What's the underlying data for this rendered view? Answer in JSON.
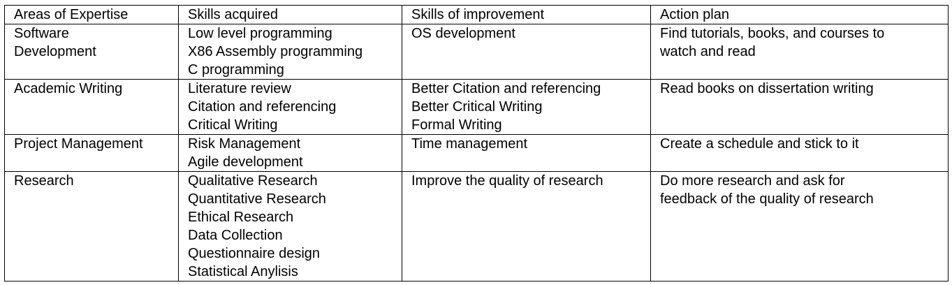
{
  "table": {
    "headers": [
      "Areas of Expertise",
      "Skills acquired",
      "Skills of improvement",
      "Action plan"
    ],
    "rows": [
      {
        "area": [
          "Software",
          "Development"
        ],
        "acquired": [
          "Low level programming",
          "X86 Assembly programming",
          "C programming"
        ],
        "improvement": [
          "OS development"
        ],
        "action": [
          "Find tutorials, books, and courses to",
          "watch and read"
        ]
      },
      {
        "area": [
          "Academic Writing"
        ],
        "acquired": [
          "Literature review",
          "Citation and referencing",
          "Critical Writing"
        ],
        "improvement": [
          "Better Citation and referencing",
          "Better Critical Writing",
          "Formal Writing"
        ],
        "action": [
          "Read books on dissertation writing"
        ]
      },
      {
        "area": [
          "Project Management"
        ],
        "acquired": [
          "Risk Management",
          "Agile development"
        ],
        "improvement": [
          "Time management"
        ],
        "action": [
          "Create a schedule and stick to it"
        ]
      },
      {
        "area": [
          "Research"
        ],
        "acquired": [
          "Qualitative Research",
          "Quantitative Research",
          "Ethical Research",
          "Data Collection",
          "Questionnaire design",
          "Statistical Anylisis"
        ],
        "improvement": [
          "Improve the quality of research"
        ],
        "action": [
          "Do more research and ask for",
          "feedback of the quality of research"
        ]
      }
    ]
  }
}
